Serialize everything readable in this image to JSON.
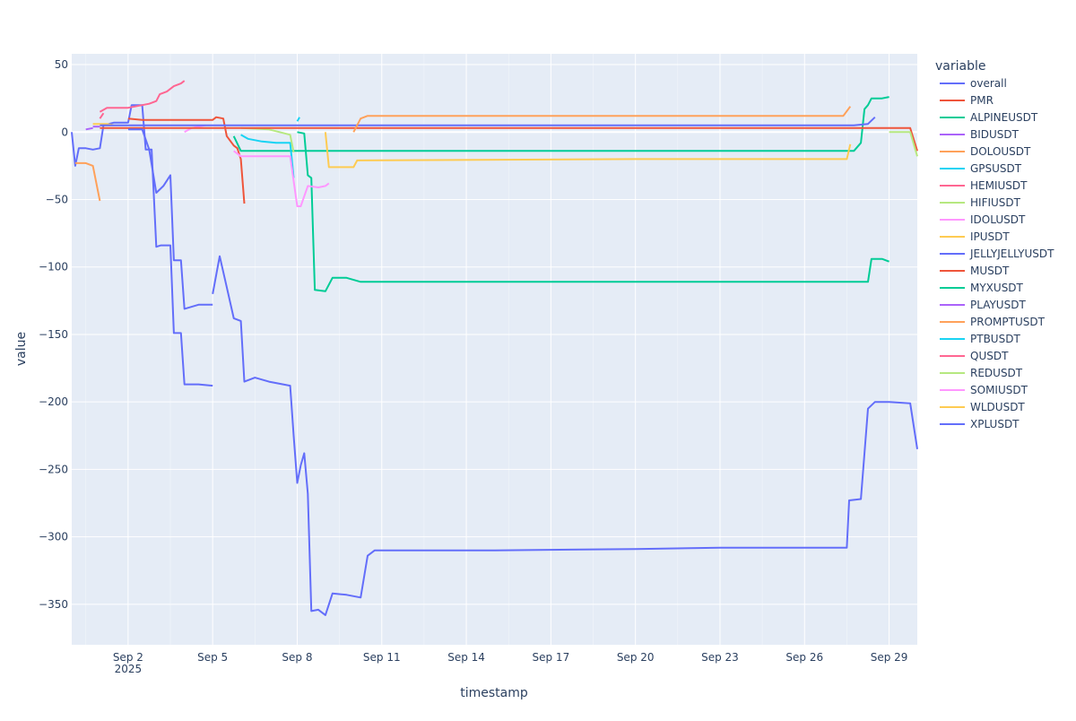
{
  "chart_data": {
    "type": "line",
    "xlabel": "timestamp",
    "ylabel": "value",
    "legend_title": "variable",
    "legend_position": "right",
    "grid": true,
    "xlim": [
      "2025-08-31T00:00",
      "2025-09-30T00:00"
    ],
    "ylim": [
      -380,
      58
    ],
    "x_ticks": [
      {
        "x": "2025-09-02",
        "label": "Sep 2",
        "sub": "2025"
      },
      {
        "x": "2025-09-05",
        "label": "Sep 5"
      },
      {
        "x": "2025-09-08",
        "label": "Sep 8"
      },
      {
        "x": "2025-09-11",
        "label": "Sep 11"
      },
      {
        "x": "2025-09-14",
        "label": "Sep 14"
      },
      {
        "x": "2025-09-17",
        "label": "Sep 17"
      },
      {
        "x": "2025-09-20",
        "label": "Sep 20"
      },
      {
        "x": "2025-09-23",
        "label": "Sep 23"
      },
      {
        "x": "2025-09-26",
        "label": "Sep 26"
      },
      {
        "x": "2025-09-29",
        "label": "Sep 29"
      }
    ],
    "y_ticks": [
      50,
      0,
      -50,
      -100,
      -150,
      -200,
      -250,
      -300,
      -350
    ],
    "series": [
      {
        "name": "overall",
        "color": "#636efa",
        "points": [
          [
            "2025-08-31T00:00",
            0
          ],
          [
            "2025-08-31T03:00",
            -25
          ],
          [
            "2025-08-31T06:00",
            -12
          ],
          [
            "2025-08-31T12:00",
            -12
          ],
          [
            "2025-08-31T18:00",
            -13
          ],
          [
            "2025-09-01T00:00",
            -12
          ],
          [
            "2025-09-01T03:00",
            5
          ],
          [
            "2025-09-01T12:00",
            7
          ],
          [
            "2025-09-02T00:00",
            7
          ],
          [
            "2025-09-02T03:00",
            20
          ],
          [
            "2025-09-02T12:00",
            20
          ],
          [
            "2025-09-02T15:00",
            -13
          ],
          [
            "2025-09-02T20:00",
            -13
          ],
          [
            "2025-09-03T00:00",
            -85
          ],
          [
            "2025-09-03T04:00",
            -84
          ],
          [
            "2025-09-03T12:00",
            -84
          ],
          [
            "2025-09-03T15:00",
            -149
          ],
          [
            "2025-09-03T21:00",
            -149
          ],
          [
            "2025-09-04T00:00",
            -187
          ],
          [
            "2025-09-04T12:00",
            -187
          ],
          [
            "2025-09-05T00:00",
            -188
          ],
          [
            "2025-09-05T00:01",
            null
          ],
          [
            "2025-09-05T00:02",
            -120
          ],
          [
            "2025-09-05T06:00",
            -92
          ],
          [
            "2025-09-05T12:00",
            -115
          ],
          [
            "2025-09-05T18:00",
            -138
          ],
          [
            "2025-09-06T00:00",
            -140
          ],
          [
            "2025-09-06T03:00",
            -185
          ],
          [
            "2025-09-06T12:00",
            -182
          ],
          [
            "2025-09-07T00:00",
            -185
          ],
          [
            "2025-09-07T18:00",
            -188
          ],
          [
            "2025-09-07T21:00",
            -225
          ],
          [
            "2025-09-08T00:00",
            -260
          ],
          [
            "2025-09-08T03:00",
            -247
          ],
          [
            "2025-09-08T06:00",
            -238
          ],
          [
            "2025-09-08T09:00",
            -268
          ],
          [
            "2025-09-08T12:00",
            -355
          ],
          [
            "2025-09-08T18:00",
            -354
          ],
          [
            "2025-09-09T00:00",
            -358
          ],
          [
            "2025-09-09T06:00",
            -342
          ],
          [
            "2025-09-09T18:00",
            -343
          ],
          [
            "2025-09-10T06:00",
            -345
          ],
          [
            "2025-09-10T12:00",
            -314
          ],
          [
            "2025-09-10T18:00",
            -310
          ],
          [
            "2025-09-11T00:00",
            -310
          ],
          [
            "2025-09-15T00:00",
            -310
          ],
          [
            "2025-09-20T00:00",
            -309
          ],
          [
            "2025-09-23T00:00",
            -308
          ],
          [
            "2025-09-27T12:00",
            -308
          ],
          [
            "2025-09-27T14:00",
            -273
          ],
          [
            "2025-09-28T00:00",
            -272
          ],
          [
            "2025-09-28T03:00",
            -238
          ],
          [
            "2025-09-28T06:00",
            -205
          ],
          [
            "2025-09-28T12:00",
            -200
          ],
          [
            "2025-09-29T00:00",
            -200
          ],
          [
            "2025-09-29T18:00",
            -201
          ],
          [
            "2025-09-30T00:00",
            -235
          ]
        ]
      },
      {
        "name": "PMR",
        "color": "#ef553b",
        "points": [
          [
            "2025-09-02T00:00",
            10
          ],
          [
            "2025-09-02T12:00",
            9
          ],
          [
            "2025-09-04T00:00",
            9
          ],
          [
            "2025-09-05T00:00",
            9
          ],
          [
            "2025-09-05T03:00",
            11
          ],
          [
            "2025-09-05T09:00",
            10
          ],
          [
            "2025-09-05T12:00",
            -3
          ],
          [
            "2025-09-05T18:00",
            -10
          ],
          [
            "2025-09-05T21:00",
            -12
          ],
          [
            "2025-09-06T00:00",
            -20
          ],
          [
            "2025-09-06T03:00",
            -53
          ]
        ]
      },
      {
        "name": "ALPINEUSDT",
        "color": "#00cc96",
        "points": [
          [
            "2025-09-05T18:00",
            -3
          ],
          [
            "2025-09-06T00:00",
            -14
          ],
          [
            "2025-09-10T00:00",
            -14
          ],
          [
            "2025-09-20T00:00",
            -14
          ],
          [
            "2025-09-27T12:00",
            -14
          ],
          [
            "2025-09-27T18:00",
            -14
          ],
          [
            "2025-09-28T00:00",
            -8
          ],
          [
            "2025-09-28T03:00",
            17
          ],
          [
            "2025-09-28T06:00",
            20
          ],
          [
            "2025-09-28T09:00",
            25
          ],
          [
            "2025-09-28T18:00",
            25
          ],
          [
            "2025-09-29T00:00",
            26
          ]
        ]
      },
      {
        "name": "BIDUSDT",
        "color": "#ab63fa",
        "points": [
          [
            "2025-08-31T12:00",
            2
          ],
          [
            "2025-08-31T18:00",
            3
          ]
        ]
      },
      {
        "name": "DOLOUSDT",
        "color": "#ffa15a",
        "points": [
          [
            "2025-08-31T03:00",
            -23
          ],
          [
            "2025-08-31T12:00",
            -23
          ],
          [
            "2025-08-31T18:00",
            -25
          ],
          [
            "2025-09-01T00:00",
            -51
          ]
        ]
      },
      {
        "name": "GPSUSDT",
        "color": "#19d3f3",
        "points": [
          [
            "2025-09-06T00:00",
            -2
          ],
          [
            "2025-09-06T06:00",
            -5
          ],
          [
            "2025-09-06T18:00",
            -7
          ],
          [
            "2025-09-07T06:00",
            -8
          ],
          [
            "2025-09-07T18:00",
            -8
          ],
          [
            "2025-09-07T21:00",
            -34
          ]
        ]
      },
      {
        "name": "HEMIUSDT",
        "color": "#ff6692",
        "points": [
          [
            "2025-09-01T00:00",
            10
          ],
          [
            "2025-09-01T03:00",
            14
          ]
        ]
      },
      {
        "name": "HIFIUSDT",
        "color": "#b6e880",
        "points": [
          [
            "2025-09-06T00:00",
            3
          ],
          [
            "2025-09-07T00:00",
            2
          ],
          [
            "2025-09-07T18:00",
            -2
          ],
          [
            "2025-09-07T21:00",
            -15
          ]
        ]
      },
      {
        "name": "IDOLUSDT",
        "color": "#ff97ff",
        "points": [
          [
            "2025-09-04T00:00",
            0
          ],
          [
            "2025-09-04T06:00",
            3
          ],
          [
            "2025-09-04T12:00",
            4
          ],
          [
            "2025-09-04T18:00",
            5
          ]
        ]
      },
      {
        "name": "IPUSDT",
        "color": "#fecb52",
        "points": [
          [
            "2025-08-31T18:00",
            6
          ],
          [
            "2025-09-01T06:00",
            6
          ],
          [
            "2025-09-01T12:00",
            5
          ]
        ]
      },
      {
        "name": "JELLYJELLYUSDT",
        "color": "#636efa",
        "points": [
          [
            "2025-09-01T00:00",
            5
          ],
          [
            "2025-09-05T00:00",
            5
          ],
          [
            "2025-09-10T00:00",
            5
          ],
          [
            "2025-09-20T00:00",
            5
          ],
          [
            "2025-09-27T18:00",
            5
          ],
          [
            "2025-09-28T06:00",
            6
          ],
          [
            "2025-09-28T12:00",
            11
          ]
        ]
      },
      {
        "name": "MUSDT",
        "color": "#ef553b",
        "points": [
          [
            "2025-09-01T00:00",
            3
          ],
          [
            "2025-09-10T00:00",
            3
          ],
          [
            "2025-09-20T00:00",
            3
          ],
          [
            "2025-09-29T00:00",
            3
          ],
          [
            "2025-09-29T18:00",
            3
          ],
          [
            "2025-09-30T00:00",
            -14
          ]
        ]
      },
      {
        "name": "MYXUSDT",
        "color": "#00cc96",
        "points": [
          [
            "2025-09-08T00:00",
            0
          ],
          [
            "2025-09-08T06:00",
            -1
          ],
          [
            "2025-09-08T09:00",
            -32
          ],
          [
            "2025-09-08T12:00",
            -34
          ],
          [
            "2025-09-08T15:00",
            -117
          ],
          [
            "2025-09-09T00:00",
            -118
          ],
          [
            "2025-09-09T06:00",
            -108
          ],
          [
            "2025-09-09T18:00",
            -108
          ],
          [
            "2025-09-10T06:00",
            -111
          ],
          [
            "2025-09-11T00:00",
            -111
          ],
          [
            "2025-09-20T00:00",
            -111
          ],
          [
            "2025-09-28T06:00",
            -111
          ],
          [
            "2025-09-28T09:00",
            -94
          ],
          [
            "2025-09-28T18:00",
            -94
          ],
          [
            "2025-09-29T00:00",
            -96
          ]
        ]
      },
      {
        "name": "PLAYUSDT",
        "color": "#ab63fa",
        "points": [
          [
            "2025-08-31T18:00",
            4
          ],
          [
            "2025-09-01T00:00",
            4
          ]
        ]
      },
      {
        "name": "PROMPTUSDT",
        "color": "#ffa15a",
        "points": [
          [
            "2025-09-10T00:00",
            0
          ],
          [
            "2025-09-10T06:00",
            10
          ],
          [
            "2025-09-10T12:00",
            12
          ],
          [
            "2025-09-20T00:00",
            12
          ],
          [
            "2025-09-27T09:00",
            12
          ],
          [
            "2025-09-27T15:00",
            19
          ]
        ]
      },
      {
        "name": "PTBUSDT",
        "color": "#19d3f3",
        "points": [
          [
            "2025-09-08T00:00",
            8
          ],
          [
            "2025-09-08T02:00",
            11
          ]
        ]
      },
      {
        "name": "QUSDT",
        "color": "#ff6692",
        "points": [
          [
            "2025-09-01T00:00",
            15
          ],
          [
            "2025-09-01T06:00",
            18
          ],
          [
            "2025-09-02T00:00",
            18
          ],
          [
            "2025-09-02T12:00",
            20
          ],
          [
            "2025-09-02T18:00",
            21
          ],
          [
            "2025-09-03T00:00",
            23
          ],
          [
            "2025-09-03T03:00",
            28
          ],
          [
            "2025-09-03T09:00",
            30
          ],
          [
            "2025-09-03T15:00",
            34
          ],
          [
            "2025-09-03T21:00",
            36
          ],
          [
            "2025-09-04T00:00",
            38
          ]
        ]
      },
      {
        "name": "REDUSDT",
        "color": "#b6e880",
        "points": [
          [
            "2025-09-29T00:00",
            0
          ],
          [
            "2025-09-29T18:00",
            0
          ],
          [
            "2025-09-30T00:00",
            -18
          ]
        ]
      },
      {
        "name": "SOMIUSDT",
        "color": "#ff97ff",
        "points": [
          [
            "2025-09-05T18:00",
            -14
          ],
          [
            "2025-09-06T00:00",
            -18
          ],
          [
            "2025-09-07T00:00",
            -18
          ],
          [
            "2025-09-07T18:00",
            -18
          ],
          [
            "2025-09-08T00:00",
            -55
          ],
          [
            "2025-09-08T03:00",
            -55
          ],
          [
            "2025-09-08T09:00",
            -40
          ],
          [
            "2025-09-08T18:00",
            -41
          ],
          [
            "2025-09-09T00:00",
            -40
          ],
          [
            "2025-09-09T03:00",
            -38
          ]
        ]
      },
      {
        "name": "WLDUSDT",
        "color": "#fecb52",
        "points": [
          [
            "2025-09-09T00:00",
            0
          ],
          [
            "2025-09-09T03:00",
            -26
          ],
          [
            "2025-09-10T00:00",
            -26
          ],
          [
            "2025-09-10T03:00",
            -21
          ],
          [
            "2025-09-20T00:00",
            -20
          ],
          [
            "2025-09-27T12:00",
            -20
          ],
          [
            "2025-09-27T15:00",
            -9
          ]
        ]
      },
      {
        "name": "XPLUSDT",
        "color": "#636efa",
        "points": [
          [
            "2025-09-02T00:00",
            2
          ],
          [
            "2025-09-02T12:00",
            2
          ],
          [
            "2025-09-02T18:00",
            -13
          ],
          [
            "2025-09-03T00:00",
            -45
          ],
          [
            "2025-09-03T06:00",
            -40
          ],
          [
            "2025-09-03T12:00",
            -32
          ],
          [
            "2025-09-03T15:00",
            -95
          ],
          [
            "2025-09-03T21:00",
            -95
          ],
          [
            "2025-09-04T00:00",
            -131
          ],
          [
            "2025-09-04T12:00",
            -128
          ],
          [
            "2025-09-05T00:00",
            -128
          ]
        ]
      }
    ]
  }
}
